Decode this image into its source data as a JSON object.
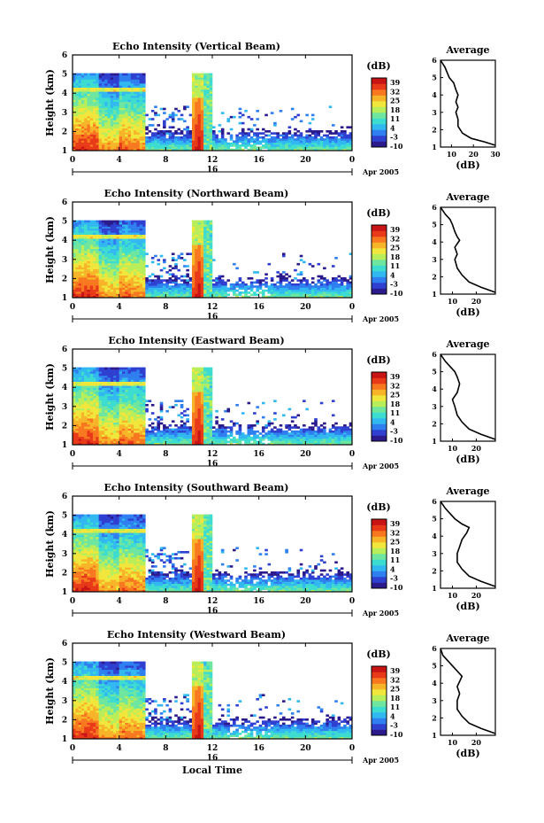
{
  "panels": [
    {
      "title": "Echo Intensity (Vertical Beam)",
      "avg_title": "Average",
      "avg_xticks": [
        "10",
        "20",
        "30"
      ],
      "avg_xlim": [
        5,
        30
      ],
      "avg_profile": [
        [
          31,
          1.1
        ],
        [
          25,
          1.3
        ],
        [
          19,
          1.5
        ],
        [
          15,
          1.8
        ],
        [
          13,
          2.2
        ],
        [
          13,
          2.6
        ],
        [
          12,
          3.0
        ],
        [
          13,
          3.3
        ],
        [
          12,
          3.6
        ],
        [
          13,
          4.0
        ],
        [
          12,
          4.3
        ],
        [
          11,
          4.7
        ],
        [
          9,
          5.0
        ],
        [
          8,
          5.3
        ],
        [
          7,
          5.6
        ],
        [
          5,
          6.0
        ]
      ]
    },
    {
      "title": "Echo Intensity (Northward Beam)",
      "avg_title": "Average",
      "avg_xticks": [
        "10",
        "20"
      ],
      "avg_xlim": [
        5,
        28
      ],
      "avg_profile": [
        [
          28,
          1.1
        ],
        [
          22,
          1.4
        ],
        [
          17,
          1.7
        ],
        [
          14,
          2.1
        ],
        [
          12,
          2.5
        ],
        [
          11,
          3.0
        ],
        [
          12,
          3.3
        ],
        [
          11,
          3.7
        ],
        [
          13,
          4.1
        ],
        [
          12,
          4.3
        ],
        [
          11,
          4.6
        ],
        [
          10,
          5.0
        ],
        [
          9,
          5.3
        ],
        [
          7,
          5.6
        ],
        [
          5,
          6.0
        ]
      ]
    },
    {
      "title": "Echo Intensity (Eastward Beam)",
      "avg_title": "Average",
      "avg_xticks": [
        "10",
        "20"
      ],
      "avg_xlim": [
        5,
        28
      ],
      "avg_profile": [
        [
          28,
          1.1
        ],
        [
          22,
          1.4
        ],
        [
          17,
          1.7
        ],
        [
          14,
          2.1
        ],
        [
          12,
          2.5
        ],
        [
          11,
          3.0
        ],
        [
          10,
          3.4
        ],
        [
          12,
          3.8
        ],
        [
          13,
          4.3
        ],
        [
          12,
          4.7
        ],
        [
          11,
          5.0
        ],
        [
          9,
          5.3
        ],
        [
          7,
          5.6
        ],
        [
          5,
          6.0
        ]
      ]
    },
    {
      "title": "Echo Intensity (Southward Beam)",
      "avg_title": "Average",
      "avg_xticks": [
        "10",
        "20"
      ],
      "avg_xlim": [
        5,
        28
      ],
      "avg_profile": [
        [
          28,
          1.1
        ],
        [
          22,
          1.4
        ],
        [
          17,
          1.7
        ],
        [
          14,
          2.1
        ],
        [
          12,
          2.5
        ],
        [
          12,
          3.0
        ],
        [
          13,
          3.4
        ],
        [
          14,
          3.8
        ],
        [
          16,
          4.2
        ],
        [
          17,
          4.5
        ],
        [
          14,
          4.7
        ],
        [
          11,
          5.0
        ],
        [
          9,
          5.3
        ],
        [
          7,
          5.6
        ],
        [
          5,
          6.0
        ]
      ]
    },
    {
      "title": "Echo Intensity (Westward Beam)",
      "avg_title": "Average",
      "avg_xticks": [
        "10",
        "20"
      ],
      "avg_xlim": [
        5,
        28
      ],
      "avg_profile": [
        [
          28,
          1.1
        ],
        [
          22,
          1.4
        ],
        [
          17,
          1.7
        ],
        [
          14,
          2.1
        ],
        [
          12,
          2.5
        ],
        [
          12,
          3.0
        ],
        [
          13,
          3.4
        ],
        [
          12,
          3.8
        ],
        [
          14,
          4.4
        ],
        [
          12,
          4.7
        ],
        [
          10,
          5.0
        ],
        [
          8,
          5.3
        ],
        [
          6,
          5.6
        ],
        [
          5,
          6.0
        ]
      ]
    }
  ],
  "yaxis": {
    "label": "Height (km)",
    "ticks": [
      "1",
      "2",
      "3",
      "4",
      "5",
      "6"
    ],
    "range": [
      1,
      6
    ]
  },
  "xaxis": {
    "ticks": [
      "0",
      "4",
      "8",
      "12",
      "16",
      "20",
      "0"
    ],
    "range_hours": [
      0,
      24
    ],
    "date_label": "16",
    "month_label": "Apr 2005",
    "label": "Local Time"
  },
  "colorbar": {
    "unit": "(dB)",
    "ticks": [
      "39",
      "32",
      "25",
      "18",
      "11",
      "4",
      "-3",
      "-10"
    ],
    "range": [
      -10,
      39
    ],
    "colors": [
      "#2a1a8c",
      "#2f3fd0",
      "#2f7ff0",
      "#32b8f0",
      "#3cdcd0",
      "#6ee6a0",
      "#b8ee5a",
      "#f0e63c",
      "#f8b428",
      "#f87820",
      "#e83a18",
      "#c81414"
    ]
  },
  "avg_xlabel": "(dB)",
  "chart_data": [
    {
      "type": "heatmap",
      "title": "Echo Intensity (Vertical Beam)",
      "xlabel": "",
      "ylabel": "Height (km)",
      "ylim": [
        1,
        6
      ],
      "xlim_local_time": [
        0,
        24
      ],
      "colorbar_label": "(dB)",
      "color_range": [
        -10,
        39
      ]
    },
    {
      "type": "line",
      "title": "Average",
      "xlabel": "(dB)",
      "ylim": [
        1,
        6
      ]
    },
    {
      "type": "heatmap",
      "title": "Echo Intensity (Northward Beam)",
      "ylabel": "Height (km)",
      "ylim": [
        1,
        6
      ]
    },
    {
      "type": "line",
      "title": "Average",
      "xlabel": "(dB)",
      "ylim": [
        1,
        6
      ]
    },
    {
      "type": "heatmap",
      "title": "Echo Intensity (Eastward Beam)",
      "ylabel": "Height (km)",
      "ylim": [
        1,
        6
      ]
    },
    {
      "type": "line",
      "title": "Average",
      "xlabel": "(dB)",
      "ylim": [
        1,
        6
      ]
    },
    {
      "type": "heatmap",
      "title": "Echo Intensity (Southward Beam)",
      "ylabel": "Height (km)",
      "ylim": [
        1,
        6
      ]
    },
    {
      "type": "line",
      "title": "Average",
      "xlabel": "(dB)",
      "ylim": [
        1,
        6
      ]
    },
    {
      "type": "heatmap",
      "title": "Echo Intensity (Westward Beam)",
      "xlabel": "Local Time",
      "ylabel": "Height (km)",
      "ylim": [
        1,
        6
      ]
    },
    {
      "type": "line",
      "title": "Average",
      "xlabel": "(dB)",
      "ylim": [
        1,
        6
      ]
    }
  ]
}
